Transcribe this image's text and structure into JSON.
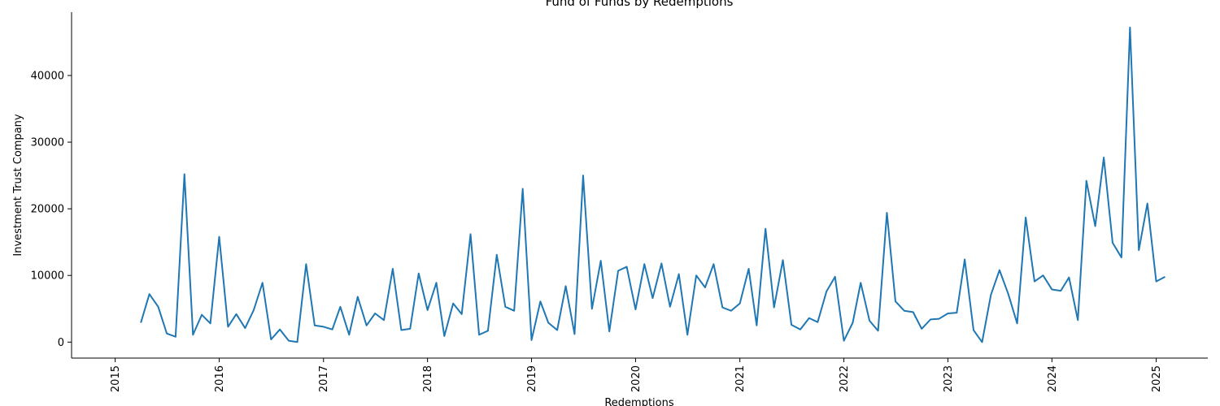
{
  "chart_data": {
    "type": "line",
    "title": "Fund of Funds by Redemptions",
    "xlabel": "Redemptions",
    "ylabel": "Investment Trust Company",
    "xlim": [
      "2014-08-01",
      "2025-07-01"
    ],
    "ylim": [
      -2400,
      49500
    ],
    "x_ticks": [
      "2015",
      "2016",
      "2017",
      "2018",
      "2019",
      "2020",
      "2021",
      "2022",
      "2023",
      "2024",
      "2025"
    ],
    "y_ticks": [
      "0",
      "10000",
      "20000",
      "30000",
      "40000"
    ],
    "grid": false,
    "line_color": "#1f77b4",
    "series": [
      {
        "x": [
          "2015-04",
          "2015-05",
          "2015-06",
          "2015-07",
          "2015-08",
          "2015-09",
          "2015-10",
          "2015-11",
          "2015-12",
          "2016-01",
          "2016-02",
          "2016-03",
          "2016-04",
          "2016-05",
          "2016-06",
          "2016-07",
          "2016-08",
          "2016-09",
          "2016-10",
          "2016-11",
          "2016-12",
          "2017-01",
          "2017-02",
          "2017-03",
          "2017-04",
          "2017-05",
          "2017-06",
          "2017-07",
          "2017-08",
          "2017-09",
          "2017-10",
          "2017-11",
          "2017-12",
          "2018-01",
          "2018-02",
          "2018-03",
          "2018-04",
          "2018-05",
          "2018-06",
          "2018-07",
          "2018-08",
          "2018-09",
          "2018-10",
          "2018-11",
          "2018-12",
          "2019-01",
          "2019-02",
          "2019-03",
          "2019-04",
          "2019-05",
          "2019-06",
          "2019-07",
          "2019-08",
          "2019-09",
          "2019-10",
          "2019-11",
          "2019-12",
          "2020-01",
          "2020-02",
          "2020-03",
          "2020-04",
          "2020-05",
          "2020-06",
          "2020-07",
          "2020-08",
          "2020-09",
          "2020-10",
          "2020-11",
          "2020-12",
          "2021-01",
          "2021-02",
          "2021-03",
          "2021-04",
          "2021-05",
          "2021-06",
          "2021-07",
          "2021-08",
          "2021-09",
          "2021-10",
          "2021-11",
          "2021-12",
          "2022-01",
          "2022-02",
          "2022-03",
          "2022-04",
          "2022-05",
          "2022-06",
          "2022-07",
          "2022-08",
          "2022-09",
          "2022-10",
          "2022-11",
          "2022-12",
          "2023-01",
          "2023-02",
          "2023-03",
          "2023-04",
          "2023-05",
          "2023-06",
          "2023-07",
          "2023-08",
          "2023-09",
          "2023-10",
          "2023-11",
          "2023-12",
          "2024-01",
          "2024-02",
          "2024-03",
          "2024-04",
          "2024-05",
          "2024-06",
          "2024-07",
          "2024-08",
          "2024-09",
          "2024-10",
          "2024-11",
          "2024-12",
          "2025-01",
          "2025-02"
        ],
        "values": [
          2900,
          7200,
          5300,
          1300,
          800,
          25200,
          1100,
          4100,
          2800,
          15800,
          2300,
          4200,
          2100,
          4800,
          8900,
          400,
          1900,
          200,
          0,
          11700,
          2500,
          2300,
          1900,
          5300,
          1100,
          6800,
          2500,
          4300,
          3300,
          11000,
          1800,
          2000,
          10300,
          4800,
          8900,
          900,
          5800,
          4200,
          16200,
          1100,
          1700,
          13100,
          5300,
          4700,
          23000,
          300,
          6100,
          2900,
          1800,
          8400,
          1200,
          25000,
          5000,
          12200,
          1600,
          10700,
          11300,
          4900,
          11700,
          6600,
          11800,
          5300,
          10200,
          1100,
          10000,
          8200,
          11700,
          5200,
          4700,
          5800,
          11000,
          2500,
          17000,
          5200,
          12300,
          2600,
          1900,
          3600,
          3000,
          7600,
          9800,
          200,
          2900,
          8900,
          3200,
          1700,
          19400,
          6100,
          4700,
          4500,
          2000,
          3400,
          3500,
          4300,
          4400,
          12400,
          1800,
          0,
          7100,
          10800,
          7200,
          2800,
          18700,
          9100,
          10000,
          7900,
          7700,
          9700,
          3300,
          24200,
          17400,
          27700,
          14900,
          12700,
          47200,
          13800,
          20800,
          9100,
          9800
        ]
      }
    ]
  }
}
